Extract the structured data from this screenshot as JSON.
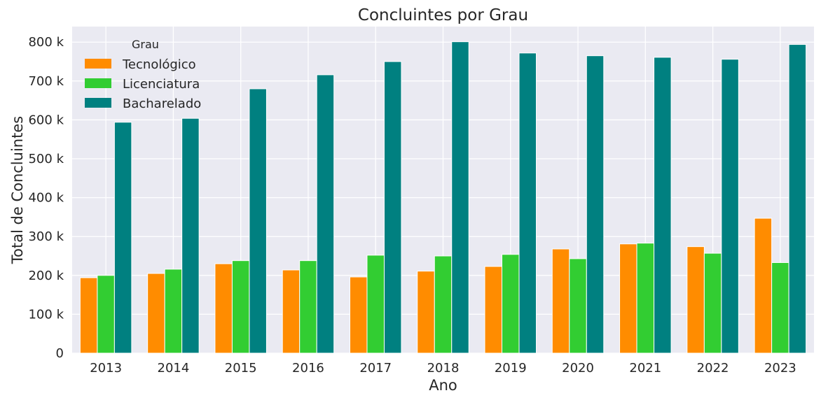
{
  "chart_data": {
    "type": "bar",
    "title": "Concluintes por Grau",
    "xlabel": "Ano",
    "ylabel": "Total de Concluintes",
    "categories": [
      "2013",
      "2014",
      "2015",
      "2016",
      "2017",
      "2018",
      "2019",
      "2020",
      "2021",
      "2022",
      "2023"
    ],
    "series": [
      {
        "name": "Tecnológico",
        "color": "#ff8c00",
        "values": [
          194000,
          205000,
          230000,
          214000,
          196000,
          211000,
          223000,
          268000,
          281000,
          274000,
          347000
        ]
      },
      {
        "name": "Licenciatura",
        "color": "#32cd32",
        "values": [
          200000,
          216000,
          238000,
          238000,
          252000,
          250000,
          254000,
          243000,
          283000,
          257000,
          233000
        ]
      },
      {
        "name": "Bacharelado",
        "color": "#008080",
        "values": [
          594000,
          604000,
          680000,
          716000,
          750000,
          801000,
          772000,
          765000,
          761000,
          756000,
          794000
        ]
      }
    ],
    "legend": {
      "title": "Grau",
      "placement": "top-left"
    },
    "ylim": [
      0,
      840000
    ],
    "yticks": [
      0,
      100000,
      200000,
      300000,
      400000,
      500000,
      600000,
      700000,
      800000
    ],
    "ytick_labels": [
      "0",
      "100 k",
      "200 k",
      "300 k",
      "400 k",
      "500 k",
      "600 k",
      "700 k",
      "800 k"
    ],
    "grid": true,
    "plot_background": "#eaeaf2",
    "grid_color": "#ffffff"
  }
}
